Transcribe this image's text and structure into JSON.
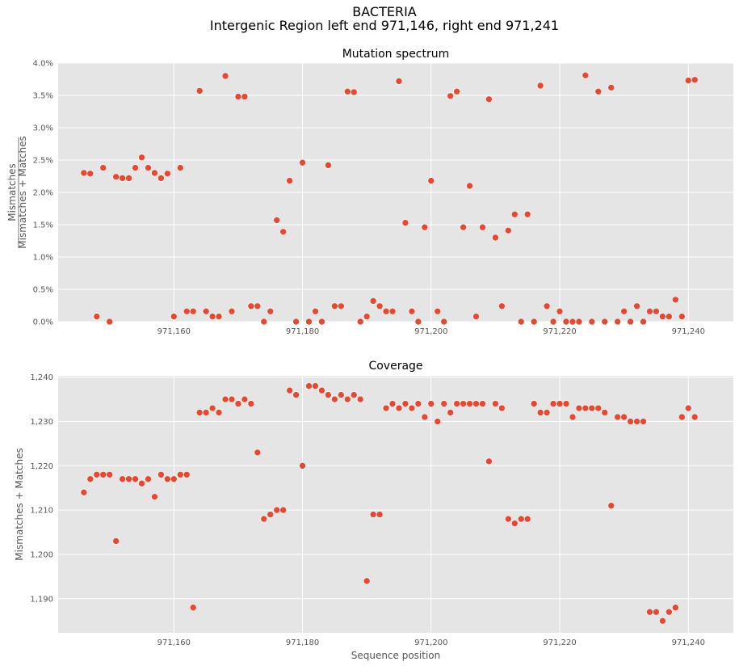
{
  "figure": {
    "title_line1": "BACTERIA",
    "title_line2": "Intergenic Region left end 971,146, right end 971,241"
  },
  "chart_data": [
    {
      "type": "scatter",
      "title": "Mutation spectrum",
      "xlabel": "",
      "ylabel_numerator": "Mismatches",
      "ylabel_denominator": "Mismatches + Matches",
      "xlim": [
        971142,
        971247
      ],
      "ylim": [
        0,
        4.0
      ],
      "grid": true,
      "color": "#e24a33",
      "xticks": [
        971160,
        971180,
        971200,
        971220,
        971240
      ],
      "xtick_labels": [
        "971,160",
        "971,180",
        "971,200",
        "971,220",
        "971,240"
      ],
      "yticks": [
        0,
        0.5,
        1.0,
        1.5,
        2.0,
        2.5,
        3.0,
        3.5,
        4.0
      ],
      "ytick_labels": [
        "0.0%",
        "0.5%",
        "1.0%",
        "1.5%",
        "2.0%",
        "2.5%",
        "3.0%",
        "3.5%",
        "4.0%"
      ],
      "points": [
        [
          971146,
          2.3
        ],
        [
          971147,
          2.29
        ],
        [
          971148,
          0.08
        ],
        [
          971149,
          2.38
        ],
        [
          971150,
          0.0
        ],
        [
          971151,
          2.24
        ],
        [
          971152,
          2.22
        ],
        [
          971153,
          2.22
        ],
        [
          971154,
          2.38
        ],
        [
          971155,
          2.54
        ],
        [
          971156,
          2.38
        ],
        [
          971157,
          2.3
        ],
        [
          971158,
          2.22
        ],
        [
          971159,
          2.29
        ],
        [
          971160,
          0.08
        ],
        [
          971161,
          2.38
        ],
        [
          971162,
          0.16
        ],
        [
          971163,
          0.16
        ],
        [
          971164,
          3.57
        ],
        [
          971165,
          0.16
        ],
        [
          971166,
          0.08
        ],
        [
          971167,
          0.08
        ],
        [
          971168,
          3.8
        ],
        [
          971169,
          0.16
        ],
        [
          971170,
          3.48
        ],
        [
          971171,
          3.48
        ],
        [
          971172,
          0.24
        ],
        [
          971173,
          0.24
        ],
        [
          971174,
          0.0
        ],
        [
          971175,
          0.16
        ],
        [
          971176,
          1.57
        ],
        [
          971177,
          1.39
        ],
        [
          971178,
          2.18
        ],
        [
          971179,
          0.0
        ],
        [
          971180,
          2.46
        ],
        [
          971181,
          0.0
        ],
        [
          971182,
          0.16
        ],
        [
          971183,
          0.0
        ],
        [
          971184,
          2.42
        ],
        [
          971185,
          0.24
        ],
        [
          971186,
          0.24
        ],
        [
          971187,
          3.56
        ],
        [
          971188,
          3.55
        ],
        [
          971189,
          0.0
        ],
        [
          971190,
          0.08
        ],
        [
          971191,
          0.32
        ],
        [
          971192,
          0.24
        ],
        [
          971193,
          0.16
        ],
        [
          971194,
          0.16
        ],
        [
          971195,
          3.72
        ],
        [
          971196,
          1.53
        ],
        [
          971197,
          0.16
        ],
        [
          971198,
          0.0
        ],
        [
          971199,
          1.46
        ],
        [
          971200,
          2.18
        ],
        [
          971201,
          0.16
        ],
        [
          971202,
          0.0
        ],
        [
          971203,
          3.49
        ],
        [
          971204,
          3.56
        ],
        [
          971205,
          1.46
        ],
        [
          971206,
          2.1
        ],
        [
          971207,
          0.08
        ],
        [
          971208,
          1.46
        ],
        [
          971209,
          3.44
        ],
        [
          971210,
          1.3
        ],
        [
          971211,
          0.24
        ],
        [
          971212,
          1.41
        ],
        [
          971213,
          1.66
        ],
        [
          971214,
          0.0
        ],
        [
          971215,
          1.66
        ],
        [
          971216,
          0.0
        ],
        [
          971217,
          3.65
        ],
        [
          971218,
          0.24
        ],
        [
          971219,
          0.0
        ],
        [
          971220,
          0.16
        ],
        [
          971221,
          0.0
        ],
        [
          971222,
          0.0
        ],
        [
          971223,
          0.0
        ],
        [
          971224,
          3.81
        ],
        [
          971225,
          0.0
        ],
        [
          971226,
          3.56
        ],
        [
          971227,
          0.0
        ],
        [
          971228,
          3.62
        ],
        [
          971229,
          0.0
        ],
        [
          971230,
          0.16
        ],
        [
          971231,
          0.0
        ],
        [
          971232,
          0.24
        ],
        [
          971233,
          0.0
        ],
        [
          971234,
          0.16
        ],
        [
          971235,
          0.16
        ],
        [
          971236,
          0.08
        ],
        [
          971237,
          0.08
        ],
        [
          971238,
          0.34
        ],
        [
          971239,
          0.08
        ],
        [
          971240,
          3.73
        ],
        [
          971241,
          3.74
        ]
      ]
    },
    {
      "type": "scatter",
      "title": "Coverage",
      "xlabel": "Sequence position",
      "ylabel": "Mismatches + Matches",
      "xlim": [
        971142,
        971247
      ],
      "ylim": [
        1182.3,
        1240.3
      ],
      "grid": true,
      "color": "#e24a33",
      "xticks": [
        971160,
        971180,
        971200,
        971220,
        971240
      ],
      "xtick_labels": [
        "971,160",
        "971,180",
        "971,200",
        "971,220",
        "971,240"
      ],
      "yticks": [
        1190,
        1200,
        1210,
        1220,
        1230,
        1240
      ],
      "ytick_labels": [
        "1,190",
        "1,200",
        "1,210",
        "1,220",
        "1,230",
        "1,240"
      ],
      "points": [
        [
          971146,
          1214
        ],
        [
          971147,
          1217
        ],
        [
          971148,
          1218
        ],
        [
          971149,
          1218
        ],
        [
          971150,
          1218
        ],
        [
          971151,
          1203
        ],
        [
          971152,
          1217
        ],
        [
          971153,
          1217
        ],
        [
          971154,
          1217
        ],
        [
          971155,
          1216
        ],
        [
          971156,
          1217
        ],
        [
          971157,
          1213
        ],
        [
          971158,
          1218
        ],
        [
          971159,
          1217
        ],
        [
          971160,
          1217
        ],
        [
          971161,
          1218
        ],
        [
          971162,
          1218
        ],
        [
          971163,
          1188
        ],
        [
          971164,
          1232
        ],
        [
          971165,
          1232
        ],
        [
          971166,
          1233
        ],
        [
          971167,
          1232
        ],
        [
          971168,
          1235
        ],
        [
          971169,
          1235
        ],
        [
          971170,
          1234
        ],
        [
          971171,
          1235
        ],
        [
          971172,
          1234
        ],
        [
          971173,
          1223
        ],
        [
          971174,
          1208
        ],
        [
          971175,
          1209
        ],
        [
          971176,
          1210
        ],
        [
          971177,
          1210
        ],
        [
          971178,
          1237
        ],
        [
          971179,
          1236
        ],
        [
          971180,
          1220
        ],
        [
          971181,
          1238
        ],
        [
          971182,
          1238
        ],
        [
          971183,
          1237
        ],
        [
          971184,
          1236
        ],
        [
          971185,
          1235
        ],
        [
          971186,
          1236
        ],
        [
          971187,
          1235
        ],
        [
          971188,
          1236
        ],
        [
          971189,
          1235
        ],
        [
          971190,
          1194
        ],
        [
          971191,
          1209
        ],
        [
          971192,
          1209
        ],
        [
          971193,
          1233
        ],
        [
          971194,
          1234
        ],
        [
          971195,
          1233
        ],
        [
          971196,
          1234
        ],
        [
          971197,
          1233
        ],
        [
          971198,
          1234
        ],
        [
          971199,
          1231
        ],
        [
          971200,
          1234
        ],
        [
          971201,
          1230
        ],
        [
          971202,
          1234
        ],
        [
          971203,
          1232
        ],
        [
          971204,
          1234
        ],
        [
          971205,
          1234
        ],
        [
          971206,
          1234
        ],
        [
          971207,
          1234
        ],
        [
          971208,
          1234
        ],
        [
          971209,
          1221
        ],
        [
          971210,
          1234
        ],
        [
          971211,
          1233
        ],
        [
          971212,
          1208
        ],
        [
          971213,
          1207
        ],
        [
          971214,
          1208
        ],
        [
          971215,
          1208
        ],
        [
          971216,
          1234
        ],
        [
          971217,
          1232
        ],
        [
          971218,
          1232
        ],
        [
          971219,
          1234
        ],
        [
          971220,
          1234
        ],
        [
          971221,
          1234
        ],
        [
          971222,
          1231
        ],
        [
          971223,
          1233
        ],
        [
          971224,
          1233
        ],
        [
          971225,
          1233
        ],
        [
          971226,
          1233
        ],
        [
          971227,
          1232
        ],
        [
          971228,
          1211
        ],
        [
          971229,
          1231
        ],
        [
          971230,
          1231
        ],
        [
          971231,
          1230
        ],
        [
          971232,
          1230
        ],
        [
          971233,
          1230
        ],
        [
          971234,
          1187
        ],
        [
          971235,
          1187
        ],
        [
          971236,
          1185
        ],
        [
          971237,
          1187
        ],
        [
          971238,
          1188
        ],
        [
          971239,
          1231
        ],
        [
          971240,
          1233
        ],
        [
          971241,
          1231
        ]
      ]
    }
  ]
}
